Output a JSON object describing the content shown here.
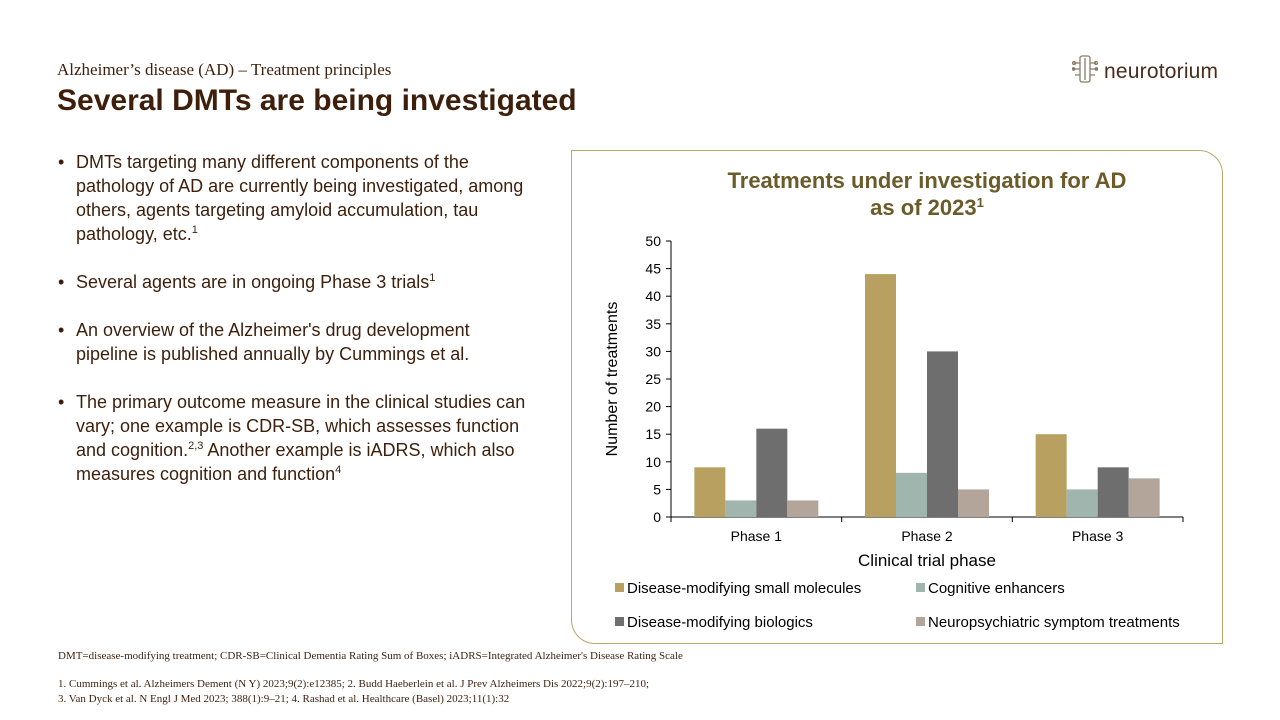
{
  "slide": {
    "subtitle": "Alzheimer’s  disease (AD) – Treatment principles",
    "title": "Several DMTs are being investigated",
    "logo": {
      "text": "neurotorium",
      "icon": "neuron-logo-icon"
    },
    "bullets": [
      {
        "text": "DMTs targeting many different components  of the pathology of AD are currently being investigated, among others, agents targeting amyloid accumulation,  tau pathology, etc.",
        "sup": "1"
      },
      {
        "text": "Several agents are in ongoing  Phase 3 trials",
        "sup": "1"
      },
      {
        "text": "An overview of the Alzheimer's  drug development pipeline is published  annually  by Cummings  et al.",
        "sup": ""
      },
      {
        "text": "The primary outcome measure in the clinical studies can vary; one example is CDR-SB, which assesses function and cognition.",
        "sup": "2,3",
        "text2": " Another example is iADRS, which also measures cognition  and function",
        "sup2": "4"
      }
    ],
    "footnotes": {
      "abbreviations": "DMT=disease-modifying treatment; CDR-SB=Clinical Dementia Rating Sum of Boxes; iADRS=Integrated Alzheimer's Disease Rating Scale",
      "refs_line1": "1. Cummings  et al.  Alzheimers Dement (N Y) 2023;9(2):e12385; 2. Budd Haeberlein  et al.  J Prev Alzheimers Dis 2022;9(2):197–210;",
      "refs_line2": "3. Van Dyck et al. N Engl  J Med 2023;  388(1):9–21; 4. Rashad et al. Healthcare (Basel) 2023;11(1):32"
    }
  },
  "chart_data": {
    "type": "bar",
    "title": "Treatments under investigation for AD",
    "title_line2": "as of 2023",
    "title_sup": "1",
    "categories": [
      "Phase 1",
      "Phase 2",
      "Phase 3"
    ],
    "xlabel": "Clinical trial phase",
    "ylabel": "Number of treatments",
    "ylim": [
      0,
      50
    ],
    "yticks": [
      0,
      5,
      10,
      15,
      20,
      25,
      30,
      35,
      40,
      45,
      50
    ],
    "grid": false,
    "legend_position": "bottom",
    "series": [
      {
        "name": "Disease-modifying small molecules",
        "color": "#b8a060",
        "values": [
          9,
          44,
          15
        ]
      },
      {
        "name": "Cognitive enhancers",
        "color": "#9fb5ad",
        "values": [
          3,
          8,
          5
        ]
      },
      {
        "name": "Disease-modifying biologics",
        "color": "#6e6e6e",
        "values": [
          16,
          30,
          9
        ]
      },
      {
        "name": "Neuropsychiatric symptom treatments",
        "color": "#b3a59a",
        "values": [
          3,
          5,
          7
        ]
      }
    ],
    "title_color": "#6b5a2a"
  }
}
